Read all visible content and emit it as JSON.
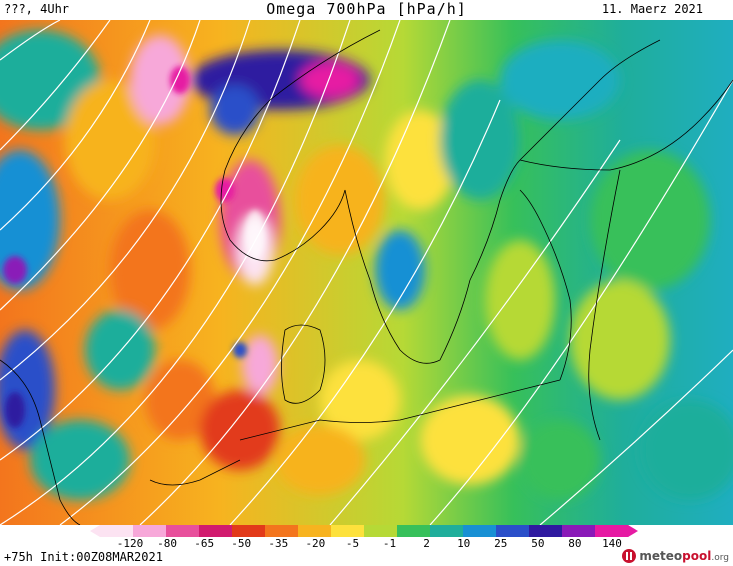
{
  "header": {
    "left": "???, 4Uhr",
    "title": "Omega 700hPa [hPa/h]",
    "right": "11. Maerz 2021"
  },
  "footer": {
    "run": "+75h Init:00Z08MAR2021"
  },
  "logo": {
    "name": "meteopool",
    "suffix": ".org",
    "mark": "meteopool-logo"
  },
  "legend": {
    "ticks": [
      "-120",
      "-80",
      "-65",
      "-50",
      "-35",
      "-20",
      "-5",
      "-1",
      "2",
      "10",
      "25",
      "50",
      "80",
      "140"
    ],
    "colors": [
      "#fce3f2",
      "#f7a8d9",
      "#e8509c",
      "#d11b6e",
      "#e23a1a",
      "#f3751d",
      "#f7b31f",
      "#fde13c",
      "#b6d936",
      "#37c05a",
      "#1fae9b",
      "#1890d4",
      "#2a4fc9",
      "#2f1aa0",
      "#8a1ab8",
      "#e61aa3"
    ]
  },
  "map_colors": {
    "ascent_strong": "#e8509c",
    "ascent": "#f3751d",
    "neutral": "#fde13c",
    "descent": "#1fae9b",
    "descent_strong": "#2a4fc9",
    "coast": "#000000",
    "isobar": "#ffffff"
  }
}
